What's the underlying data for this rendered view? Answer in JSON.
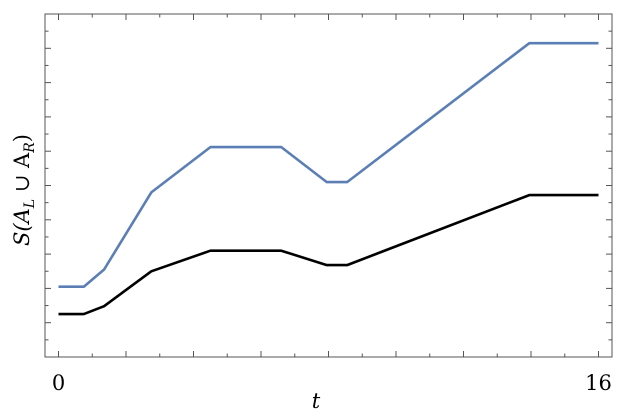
{
  "chart_data": {
    "type": "line",
    "title": "",
    "xlabel": "t",
    "ylabel": "S(A_L ∪ A_R)",
    "ylabel_parts": {
      "pre": "S(A",
      "sub1": "L",
      "mid": " ∪ A",
      "sub2": "R",
      "post": ")"
    },
    "xlim": [
      -0.4,
      16.4
    ],
    "ylim": [
      0,
      1
    ],
    "x_tick_labels": [
      "0",
      "16"
    ],
    "x_ticks_labeled": [
      0,
      16
    ],
    "grid": false,
    "legend": "none",
    "series": [
      {
        "color": "#5b7fb5",
        "x": [
          0,
          0.75,
          1.35,
          2.75,
          4.5,
          6.6,
          7.95,
          8.55,
          13.95,
          16
        ],
        "y": [
          0.205,
          0.205,
          0.255,
          0.48,
          0.612,
          0.612,
          0.51,
          0.51,
          0.915,
          0.915
        ]
      },
      {
        "color": "#000000",
        "x": [
          0,
          0.75,
          1.35,
          2.75,
          4.5,
          6.6,
          7.95,
          8.55,
          13.95,
          16
        ],
        "y": [
          0.125,
          0.125,
          0.148,
          0.25,
          0.31,
          0.31,
          0.268,
          0.268,
          0.472,
          0.472
        ]
      }
    ]
  }
}
